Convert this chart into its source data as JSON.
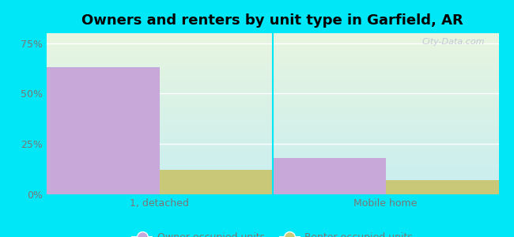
{
  "title": "Owners and renters by unit type in Garfield, AR",
  "categories": [
    "1, detached",
    "Mobile home"
  ],
  "owner_values": [
    63,
    18
  ],
  "renter_values": [
    12,
    7
  ],
  "owner_color": "#c8a8d8",
  "renter_color": "#c8c878",
  "owner_label": "Owner occupied units",
  "renter_label": "Renter occupied units",
  "yticks": [
    0,
    25,
    50,
    75
  ],
  "ylim": [
    0,
    80
  ],
  "bar_width": 0.25,
  "background_color": "#00e8f8",
  "plot_bg_color_topleft": "#e8f5e0",
  "plot_bg_color_bottomright": "#c8eef0",
  "watermark": "City-Data.com",
  "title_fontsize": 13,
  "tick_fontsize": 9,
  "legend_fontsize": 9
}
